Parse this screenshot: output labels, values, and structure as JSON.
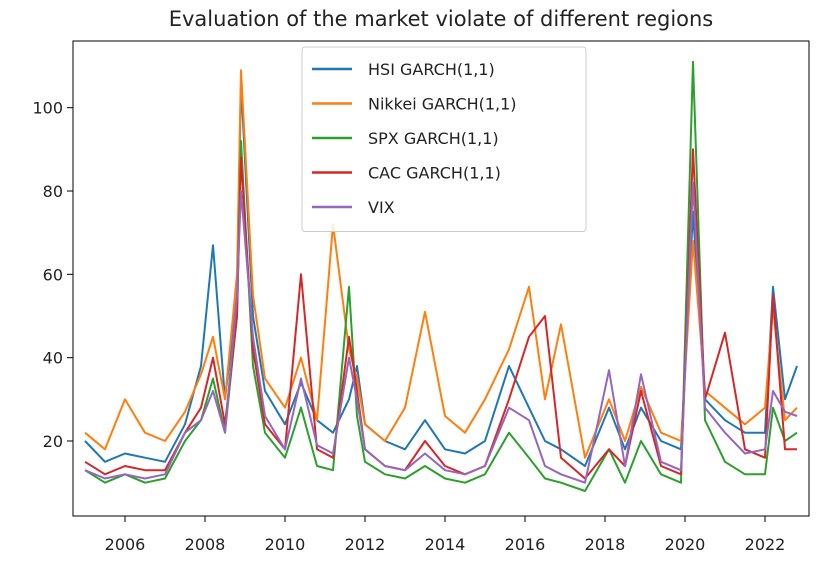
{
  "chart_data": {
    "type": "line",
    "title": "Evaluation of the market violate of different regions",
    "xlabel": "",
    "ylabel": "",
    "xlim": [
      2004.7,
      2023.1
    ],
    "ylim": [
      2,
      116
    ],
    "x_ticks": [
      "2006",
      "2008",
      "2010",
      "2012",
      "2014",
      "2016",
      "2018",
      "2020",
      "2022"
    ],
    "y_ticks": [
      "20",
      "40",
      "60",
      "80",
      "100"
    ],
    "grid": false,
    "legend_position": "top-center",
    "x": [
      2005.0,
      2005.5,
      2006.0,
      2006.5,
      2007.0,
      2007.5,
      2007.9,
      2008.2,
      2008.5,
      2008.8,
      2008.9,
      2009.2,
      2009.5,
      2010.0,
      2010.4,
      2010.8,
      2011.2,
      2011.6,
      2011.8,
      2012.0,
      2012.5,
      2013.0,
      2013.5,
      2014.0,
      2014.5,
      2015.0,
      2015.6,
      2016.1,
      2016.5,
      2016.9,
      2017.5,
      2018.1,
      2018.5,
      2018.9,
      2019.4,
      2019.9,
      2020.2,
      2020.5,
      2021.0,
      2021.5,
      2022.0,
      2022.2,
      2022.5,
      2022.8
    ],
    "series": [
      {
        "name": "HSI GARCH(1,1)",
        "color": "#1f77b4",
        "values": [
          20,
          15,
          17,
          16,
          15,
          24,
          38,
          67,
          30,
          55,
          106,
          50,
          32,
          24,
          34,
          25,
          22,
          30,
          38,
          24,
          20,
          18,
          25,
          18,
          17,
          20,
          38,
          28,
          20,
          18,
          14,
          28,
          18,
          28,
          20,
          18,
          75,
          30,
          25,
          22,
          22,
          57,
          30,
          38
        ]
      },
      {
        "name": "Nikkei GARCH(1,1)",
        "color": "#ff7f0e",
        "values": [
          22,
          18,
          30,
          22,
          20,
          27,
          36,
          45,
          30,
          60,
          109,
          55,
          35,
          28,
          40,
          25,
          72,
          42,
          35,
          24,
          20,
          28,
          51,
          26,
          22,
          30,
          42,
          57,
          30,
          48,
          16,
          30,
          20,
          33,
          22,
          20,
          68,
          32,
          28,
          24,
          28,
          52,
          25,
          28
        ]
      },
      {
        "name": "SPX GARCH(1,1)",
        "color": "#2ca02c",
        "values": [
          13,
          10,
          12,
          10,
          11,
          20,
          25,
          35,
          22,
          50,
          92,
          38,
          22,
          16,
          28,
          14,
          13,
          57,
          26,
          15,
          12,
          11,
          14,
          11,
          10,
          12,
          22,
          16,
          11,
          10,
          8,
          18,
          10,
          20,
          12,
          10,
          111,
          25,
          15,
          12,
          12,
          28,
          20,
          22
        ]
      },
      {
        "name": "CAC GARCH(1,1)",
        "color": "#d62728",
        "values": [
          15,
          12,
          14,
          13,
          13,
          22,
          28,
          40,
          24,
          50,
          88,
          42,
          24,
          18,
          60,
          18,
          16,
          45,
          32,
          18,
          14,
          13,
          20,
          14,
          12,
          14,
          30,
          45,
          50,
          16,
          11,
          18,
          14,
          32,
          14,
          12,
          90,
          30,
          46,
          18,
          16,
          55,
          18,
          18
        ]
      },
      {
        "name": "VIX",
        "color": "#9467bd",
        "values": [
          13,
          11,
          12,
          11,
          12,
          22,
          25,
          32,
          22,
          55,
          80,
          45,
          26,
          18,
          35,
          19,
          17,
          40,
          30,
          18,
          14,
          13,
          17,
          13,
          12,
          14,
          28,
          25,
          14,
          12,
          10,
          37,
          14,
          36,
          15,
          13,
          82,
          28,
          22,
          17,
          18,
          32,
          27,
          26
        ]
      }
    ]
  }
}
